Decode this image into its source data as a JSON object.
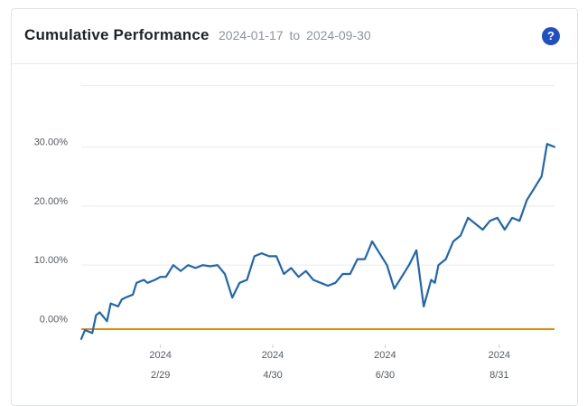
{
  "header": {
    "title": "Cumulative Performance",
    "date_start": "2024-01-17",
    "date_sep": "to",
    "date_end": "2024-09-30",
    "help_glyph": "?"
  },
  "colors": {
    "line": "#1f66b3",
    "baseline": "#e08c0b",
    "grid": "#e9ebee",
    "help": "#1f4fc4"
  },
  "chart_data": {
    "type": "line",
    "title": "Cumulative Performance",
    "xlabel": "",
    "ylabel": "",
    "grid": true,
    "legend": "none",
    "ylim": [
      -3,
      40
    ],
    "yticks": [
      {
        "value": 0,
        "label": "0.00%"
      },
      {
        "value": 10,
        "label": "10.00%"
      },
      {
        "value": 20,
        "label": "20.00%"
      },
      {
        "value": 30,
        "label": "30.00%"
      }
    ],
    "xticks": [
      {
        "date": "2024-02-29",
        "year": "2024",
        "label": "2/29"
      },
      {
        "date": "2024-04-30",
        "year": "2024",
        "label": "4/30"
      },
      {
        "date": "2024-06-30",
        "year": "2024",
        "label": "6/30"
      },
      {
        "date": "2024-08-31",
        "year": "2024",
        "label": "8/31"
      }
    ],
    "baseline_value": -0.8,
    "series": [
      {
        "x": [
          "2024-01-17",
          "2024-01-19",
          "2024-01-23",
          "2024-01-25",
          "2024-01-27",
          "2024-01-31",
          "2024-02-02",
          "2024-02-06",
          "2024-02-08",
          "2024-02-10",
          "2024-02-14",
          "2024-02-16",
          "2024-02-20",
          "2024-02-22",
          "2024-02-26",
          "2024-02-29",
          "2024-03-03",
          "2024-03-07",
          "2024-03-11",
          "2024-03-15",
          "2024-03-19",
          "2024-03-23",
          "2024-03-27",
          "2024-03-31",
          "2024-04-04",
          "2024-04-08",
          "2024-04-12",
          "2024-04-16",
          "2024-04-20",
          "2024-04-24",
          "2024-04-28",
          "2024-05-02",
          "2024-05-06",
          "2024-05-10",
          "2024-05-14",
          "2024-05-18",
          "2024-05-22",
          "2024-05-26",
          "2024-05-30",
          "2024-06-03",
          "2024-06-07",
          "2024-06-11",
          "2024-06-15",
          "2024-06-19",
          "2024-06-23",
          "2024-06-27",
          "2024-07-01",
          "2024-07-05",
          "2024-07-09",
          "2024-07-13",
          "2024-07-17",
          "2024-07-21",
          "2024-07-25",
          "2024-07-27",
          "2024-07-29",
          "2024-08-02",
          "2024-08-06",
          "2024-08-10",
          "2024-08-14",
          "2024-08-18",
          "2024-08-22",
          "2024-08-26",
          "2024-08-30",
          "2024-09-03",
          "2024-09-07",
          "2024-09-11",
          "2024-09-15",
          "2024-09-19",
          "2024-09-21",
          "2024-09-23",
          "2024-09-26",
          "2024-09-30"
        ],
        "y": [
          -2.5,
          -1.0,
          -1.5,
          1.5,
          2.0,
          0.5,
          3.5,
          3.0,
          4.2,
          4.5,
          5.0,
          7.0,
          7.5,
          7.0,
          7.5,
          8.0,
          8.0,
          10.0,
          9.0,
          10.0,
          9.5,
          10.0,
          9.8,
          10.0,
          8.5,
          4.5,
          7.0,
          7.5,
          11.5,
          12.0,
          11.5,
          11.5,
          8.5,
          9.5,
          8.0,
          9.0,
          7.5,
          7.0,
          6.5,
          7.0,
          8.5,
          8.5,
          11.0,
          11.0,
          14.0,
          12.0,
          10.0,
          6.0,
          8.0,
          10.0,
          12.5,
          3.0,
          7.5,
          7.0,
          10.0,
          11.0,
          14.0,
          15.0,
          18.0,
          17.0,
          16.0,
          17.5,
          18.0,
          16.0,
          18.0,
          17.5,
          21.0,
          23.0,
          24.0,
          25.0,
          30.5,
          30.0
        ]
      }
    ]
  }
}
